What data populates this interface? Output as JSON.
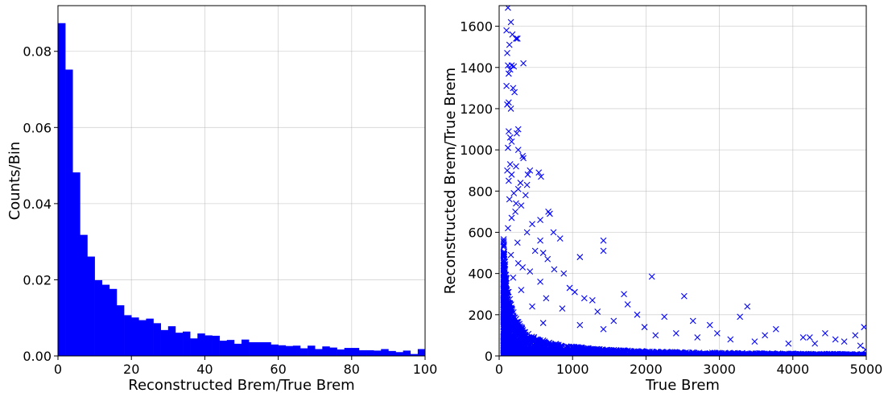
{
  "chart_data": [
    {
      "type": "bar",
      "subtype": "histogram",
      "xlabel": "Reconstructed Brem/True Brem",
      "ylabel": "Counts/Bin",
      "xlim": [
        0,
        100
      ],
      "ylim": [
        0,
        0.092
      ],
      "xticks": [
        0,
        20,
        40,
        60,
        80,
        100
      ],
      "xtick_labels": [
        "0",
        "20",
        "40",
        "60",
        "80",
        "100"
      ],
      "yticks": [
        0,
        0.02,
        0.04,
        0.06,
        0.08
      ],
      "ytick_labels": [
        "0.00",
        "0.02",
        "0.04",
        "0.06",
        "0.08"
      ],
      "grid": true,
      "color": "#0000ff",
      "bin_width": 2,
      "bin_edges_start": 0,
      "values": [
        0.0874,
        0.0752,
        0.0482,
        0.0318,
        0.0261,
        0.0199,
        0.0187,
        0.0176,
        0.0133,
        0.0107,
        0.0101,
        0.0094,
        0.0098,
        0.0086,
        0.0068,
        0.0078,
        0.0061,
        0.0064,
        0.0046,
        0.0059,
        0.0054,
        0.0053,
        0.004,
        0.0042,
        0.0032,
        0.0043,
        0.0036,
        0.0036,
        0.0036,
        0.003,
        0.0028,
        0.0026,
        0.0027,
        0.002,
        0.0027,
        0.0018,
        0.0025,
        0.0022,
        0.0017,
        0.0021,
        0.0021,
        0.0015,
        0.0015,
        0.0014,
        0.0018,
        0.0013,
        0.001,
        0.0014,
        0.0005,
        0.0018
      ]
    },
    {
      "type": "scatter",
      "xlabel": "True Brem",
      "ylabel": "Reconstructed Brem/True Brem",
      "xlim": [
        0,
        5000
      ],
      "ylim": [
        0,
        1700
      ],
      "xticks": [
        0,
        1000,
        2000,
        3000,
        4000,
        5000
      ],
      "xtick_labels": [
        "0",
        "1000",
        "2000",
        "3000",
        "4000",
        "5000"
      ],
      "yticks": [
        0,
        200,
        400,
        600,
        800,
        1000,
        1200,
        1400,
        1600
      ],
      "ytick_labels": [
        "0",
        "200",
        "400",
        "600",
        "800",
        "1000",
        "1200",
        "1400",
        "1600"
      ],
      "grid": true,
      "marker": "x",
      "color": "#0000ff",
      "points": [
        [
          120,
          1690
        ],
        [
          160,
          1620
        ],
        [
          100,
          1580
        ],
        [
          180,
          1560
        ],
        [
          230,
          1540
        ],
        [
          250,
          1540
        ],
        [
          140,
          1510
        ],
        [
          110,
          1470
        ],
        [
          330,
          1420
        ],
        [
          120,
          1410
        ],
        [
          170,
          1410
        ],
        [
          200,
          1405
        ],
        [
          150,
          1390
        ],
        [
          130,
          1370
        ],
        [
          100,
          1310
        ],
        [
          190,
          1300
        ],
        [
          210,
          1280
        ],
        [
          130,
          1230
        ],
        [
          110,
          1220
        ],
        [
          160,
          1200
        ],
        [
          130,
          1090
        ],
        [
          260,
          1100
        ],
        [
          240,
          1080
        ],
        [
          150,
          1060
        ],
        [
          170,
          1040
        ],
        [
          120,
          1010
        ],
        [
          260,
          1000
        ],
        [
          320,
          970
        ],
        [
          330,
          960
        ],
        [
          150,
          930
        ],
        [
          230,
          920
        ],
        [
          110,
          900
        ],
        [
          420,
          900
        ],
        [
          390,
          880
        ],
        [
          170,
          880
        ],
        [
          540,
          890
        ],
        [
          570,
          870
        ],
        [
          130,
          850
        ],
        [
          290,
          840
        ],
        [
          380,
          830
        ],
        [
          260,
          810
        ],
        [
          200,
          790
        ],
        [
          360,
          780
        ],
        [
          140,
          760
        ],
        [
          230,
          740
        ],
        [
          300,
          730
        ],
        [
          220,
          700
        ],
        [
          670,
          700
        ],
        [
          690,
          690
        ],
        [
          170,
          670
        ],
        [
          560,
          660
        ],
        [
          450,
          640
        ],
        [
          120,
          620
        ],
        [
          740,
          600
        ],
        [
          380,
          600
        ],
        [
          830,
          570
        ],
        [
          560,
          560
        ],
        [
          1420,
          560
        ],
        [
          250,
          550
        ],
        [
          1420,
          510
        ],
        [
          490,
          510
        ],
        [
          600,
          500
        ],
        [
          160,
          490
        ],
        [
          1100,
          480
        ],
        [
          660,
          470
        ],
        [
          260,
          450
        ],
        [
          320,
          430
        ],
        [
          750,
          420
        ],
        [
          420,
          410
        ],
        [
          880,
          400
        ],
        [
          2080,
          385
        ],
        [
          190,
          380
        ],
        [
          560,
          360
        ],
        [
          960,
          330
        ],
        [
          300,
          320
        ],
        [
          1030,
          310
        ],
        [
          1700,
          300
        ],
        [
          2520,
          290
        ],
        [
          640,
          280
        ],
        [
          1160,
          280
        ],
        [
          1270,
          270
        ],
        [
          1750,
          250
        ],
        [
          3380,
          240
        ],
        [
          450,
          240
        ],
        [
          860,
          230
        ],
        [
          1340,
          215
        ],
        [
          1880,
          200
        ],
        [
          2250,
          190
        ],
        [
          1560,
          170
        ],
        [
          2640,
          170
        ],
        [
          3280,
          190
        ],
        [
          600,
          160
        ],
        [
          1100,
          150
        ],
        [
          1980,
          140
        ],
        [
          2870,
          150
        ],
        [
          3770,
          130
        ],
        [
          4440,
          110
        ],
        [
          4970,
          140
        ],
        [
          2410,
          110
        ],
        [
          2970,
          110
        ],
        [
          3620,
          100
        ],
        [
          4140,
          90
        ],
        [
          4230,
          90
        ],
        [
          4580,
          80
        ],
        [
          4850,
          100
        ],
        [
          1420,
          130
        ],
        [
          2130,
          100
        ],
        [
          2700,
          90
        ],
        [
          3150,
          80
        ],
        [
          3480,
          70
        ],
        [
          3940,
          60
        ],
        [
          4300,
          60
        ],
        [
          4700,
          70
        ],
        [
          4920,
          50
        ],
        [
          4990,
          30
        ]
      ]
    }
  ]
}
